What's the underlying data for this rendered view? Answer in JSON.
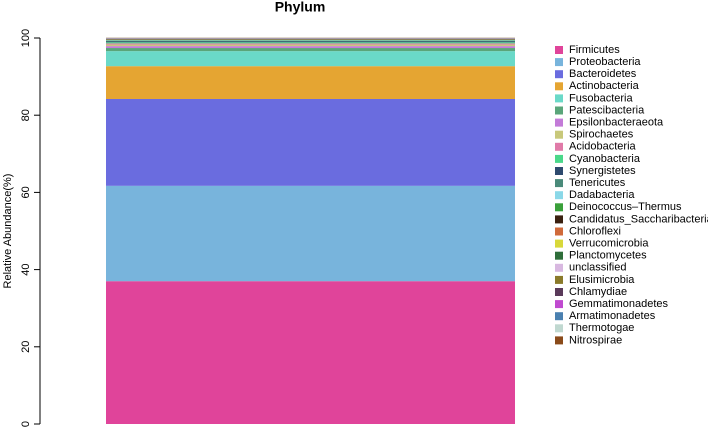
{
  "chart_data": {
    "type": "stacked_bar",
    "title": "Phylum",
    "y_label": "Relative Abundance(%)",
    "ylim": [
      0,
      100
    ],
    "yticks": [
      0,
      20,
      40,
      60,
      80,
      100
    ],
    "series": [
      {
        "name": "Firmicutes",
        "color": "#e0449a",
        "values": [
          37
        ]
      },
      {
        "name": "Proteobacteria",
        "color": "#78b4dc",
        "values": [
          24.7
        ]
      },
      {
        "name": "Bacteroidetes",
        "color": "#6a6cdf",
        "values": [
          22.5
        ]
      },
      {
        "name": "Actinobacteria",
        "color": "#e5a532",
        "values": [
          8.5
        ]
      },
      {
        "name": "Fusobacteria",
        "color": "#6ad9c8",
        "values": [
          3.9
        ]
      },
      {
        "name": "Patescibacteria",
        "color": "#5aa57a",
        "values": [
          0.8
        ]
      },
      {
        "name": "Epsilonbacteraeota",
        "color": "#c37bd8",
        "values": [
          0.5
        ]
      },
      {
        "name": "Spirochaetes",
        "color": "#c8c87a",
        "values": [
          0.4
        ]
      },
      {
        "name": "Acidobacteria",
        "color": "#e07aa8",
        "values": [
          0.3
        ]
      },
      {
        "name": "Cyanobacteria",
        "color": "#4ad88a",
        "values": [
          0.3
        ]
      },
      {
        "name": "Synergistetes",
        "color": "#2e4a6e",
        "values": [
          0.2
        ]
      },
      {
        "name": "Tenericutes",
        "color": "#4a8a7a",
        "values": [
          0.2
        ]
      },
      {
        "name": "Dadabacteria",
        "color": "#8ad8e8",
        "values": [
          0.1
        ]
      },
      {
        "name": "Deinococcus–Thermus",
        "color": "#3aa03a",
        "values": [
          0.1
        ]
      },
      {
        "name": "Candidatus_Saccharibacteria",
        "color": "#3a2010",
        "values": [
          0.1
        ]
      },
      {
        "name": "Chloroflexi",
        "color": "#d06a3a",
        "values": [
          0.05
        ]
      },
      {
        "name": "Verrucomicrobia",
        "color": "#d8d83a",
        "values": [
          0.05
        ]
      },
      {
        "name": "Planctomycetes",
        "color": "#2e6e3a",
        "values": [
          0.05
        ]
      },
      {
        "name": "unclassified",
        "color": "#d8b8e0",
        "values": [
          0.05
        ]
      },
      {
        "name": "Elusimicrobia",
        "color": "#8a7a2a",
        "values": [
          0.05
        ]
      },
      {
        "name": "Chlamydiae",
        "color": "#5a3a5a",
        "values": [
          0.05
        ]
      },
      {
        "name": "Gemmatimonadetes",
        "color": "#c04ad0",
        "values": [
          0.05
        ]
      },
      {
        "name": "Armatimonadetes",
        "color": "#4a80b0",
        "values": [
          0.05
        ]
      },
      {
        "name": "Thermotogae",
        "color": "#c0d8d0",
        "values": [
          0.05
        ]
      },
      {
        "name": "Nitrospirae",
        "color": "#8a4a1a",
        "values": [
          0.05
        ]
      }
    ]
  }
}
